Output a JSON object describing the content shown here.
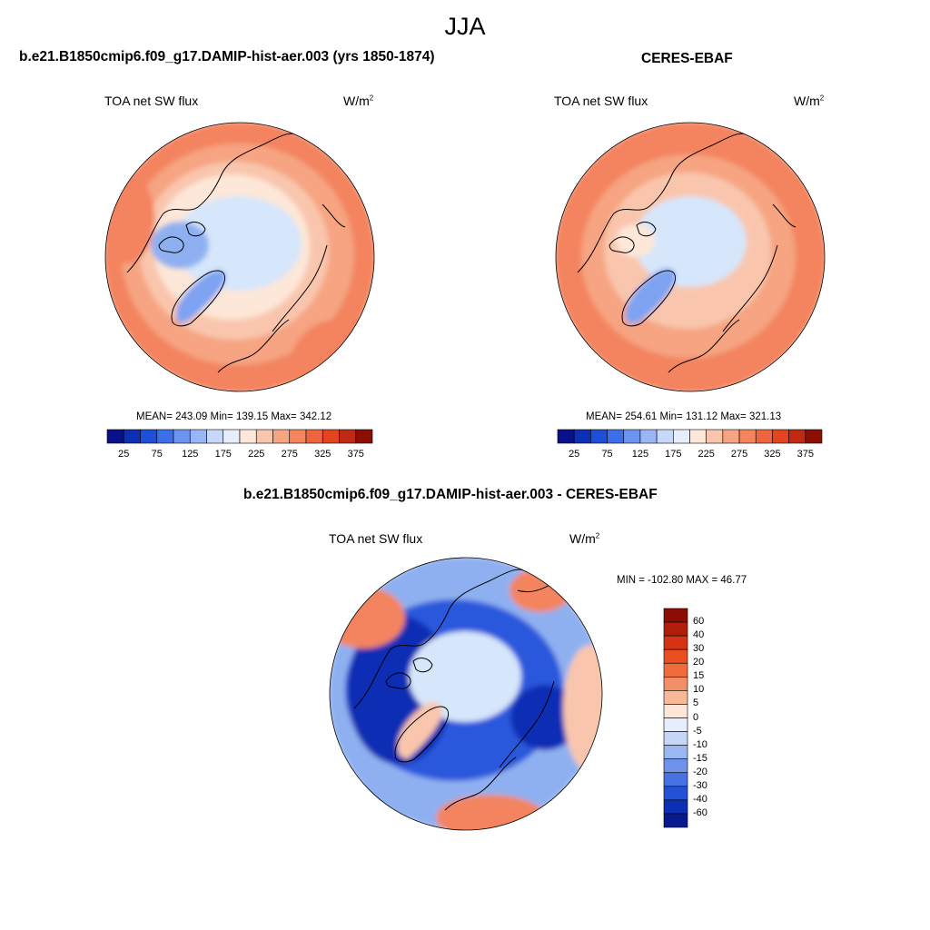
{
  "season": "JJA",
  "panels": [
    {
      "title": "b.e21.B1850cmip6.f09_g17.DAMIP-hist-aer.003 (yrs 1850-1874)",
      "variable": "TOA net SW flux",
      "units": "W/m",
      "units_sup": "2",
      "stats": "MEAN= 243.09  Min= 139.15  Max= 342.12"
    },
    {
      "title": "CERES-EBAF",
      "variable": "TOA net SW flux",
      "units": "W/m",
      "units_sup": "2",
      "stats": "MEAN= 254.61  Min= 131.12  Max= 321.13"
    },
    {
      "title": "b.e21.B1850cmip6.f09_g17.DAMIP-hist-aer.003 - CERES-EBAF",
      "variable": "TOA net SW flux",
      "units": "W/m",
      "units_sup": "2",
      "stats": "MIN = -102.80 MAX =  46.77"
    }
  ],
  "colorbar_abs": {
    "ticks": [
      "25",
      "75",
      "125",
      "175",
      "225",
      "275",
      "325",
      "375"
    ],
    "colors": [
      "#08108c",
      "#0c2fb4",
      "#1d50d8",
      "#3b6fea",
      "#6b93f0",
      "#9ab5f5",
      "#c7d8fa",
      "#e6eefc",
      "#fde7d8",
      "#f9c6ad",
      "#f6a482",
      "#f3845e",
      "#ef6440",
      "#e4441e",
      "#c12a12",
      "#8b0d04"
    ]
  },
  "colorbar_diff": {
    "ticks": [
      "60",
      "40",
      "30",
      "20",
      "15",
      "10",
      "5",
      "0",
      "-5",
      "-10",
      "-15",
      "-20",
      "-30",
      "-40",
      "-60"
    ],
    "colors": [
      "#8b0d04",
      "#b01e0a",
      "#d43414",
      "#ea4f22",
      "#f06c3c",
      "#f38f66",
      "#f7b898",
      "#fde6d6",
      "#e6eefc",
      "#c5d6f7",
      "#9bb7f1",
      "#6f93ea",
      "#4672e2",
      "#2451d8",
      "#0c2fb4",
      "#081a8e"
    ]
  },
  "map_palette": {
    "warm_outer": "#f3845e",
    "warm_mid": "#f6a482",
    "warm_light": "#f9c6ad",
    "pale_red": "#fde7d8",
    "ice": "#d6e6fb",
    "greenland_blue": "#7ea3f2",
    "deep_blue": "#0c2fb4",
    "mid_blue": "#2a58dc",
    "light_blue": "#8fb0f0",
    "coast": "#000000"
  }
}
